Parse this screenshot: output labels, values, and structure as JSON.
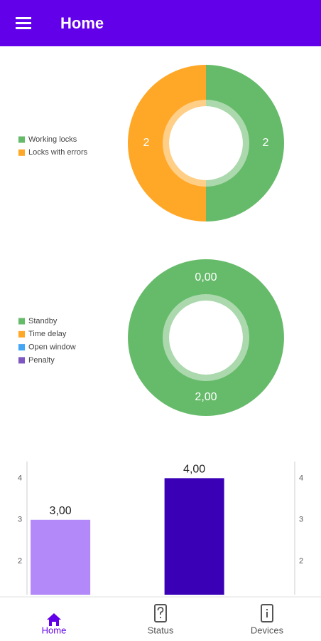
{
  "app_bar": {
    "title": "Home"
  },
  "chart_data": [
    {
      "type": "donut",
      "categories": [
        "Working locks",
        "Locks with errors"
      ],
      "values": [
        2,
        2
      ],
      "colors": [
        "#66bb6a",
        "#ffa726"
      ]
    },
    {
      "type": "donut",
      "categories": [
        "Standby",
        "Time delay",
        "Open window",
        "Penalty"
      ],
      "values": [
        2,
        0,
        0,
        0
      ],
      "value_labels": [
        "2,00",
        "0,00",
        null,
        null
      ],
      "colors": [
        "#66bb6a",
        "#ffa726",
        "#42a5f5",
        "#7e57c2"
      ]
    },
    {
      "type": "bar",
      "values": [
        3,
        4
      ],
      "value_labels": [
        "3,00",
        "4,00"
      ],
      "colors": [
        "#b388f8",
        "#3a00b5"
      ],
      "ylim": [
        1.2,
        4.4
      ],
      "yticks": [
        2,
        3,
        4
      ],
      "y2lim": [
        1.2,
        4.4
      ],
      "y2ticks": [
        2,
        3,
        4
      ]
    }
  ],
  "bottom_nav": {
    "items": [
      {
        "label": "Home",
        "active": true
      },
      {
        "label": "Status"
      },
      {
        "label": "Devices"
      }
    ]
  }
}
